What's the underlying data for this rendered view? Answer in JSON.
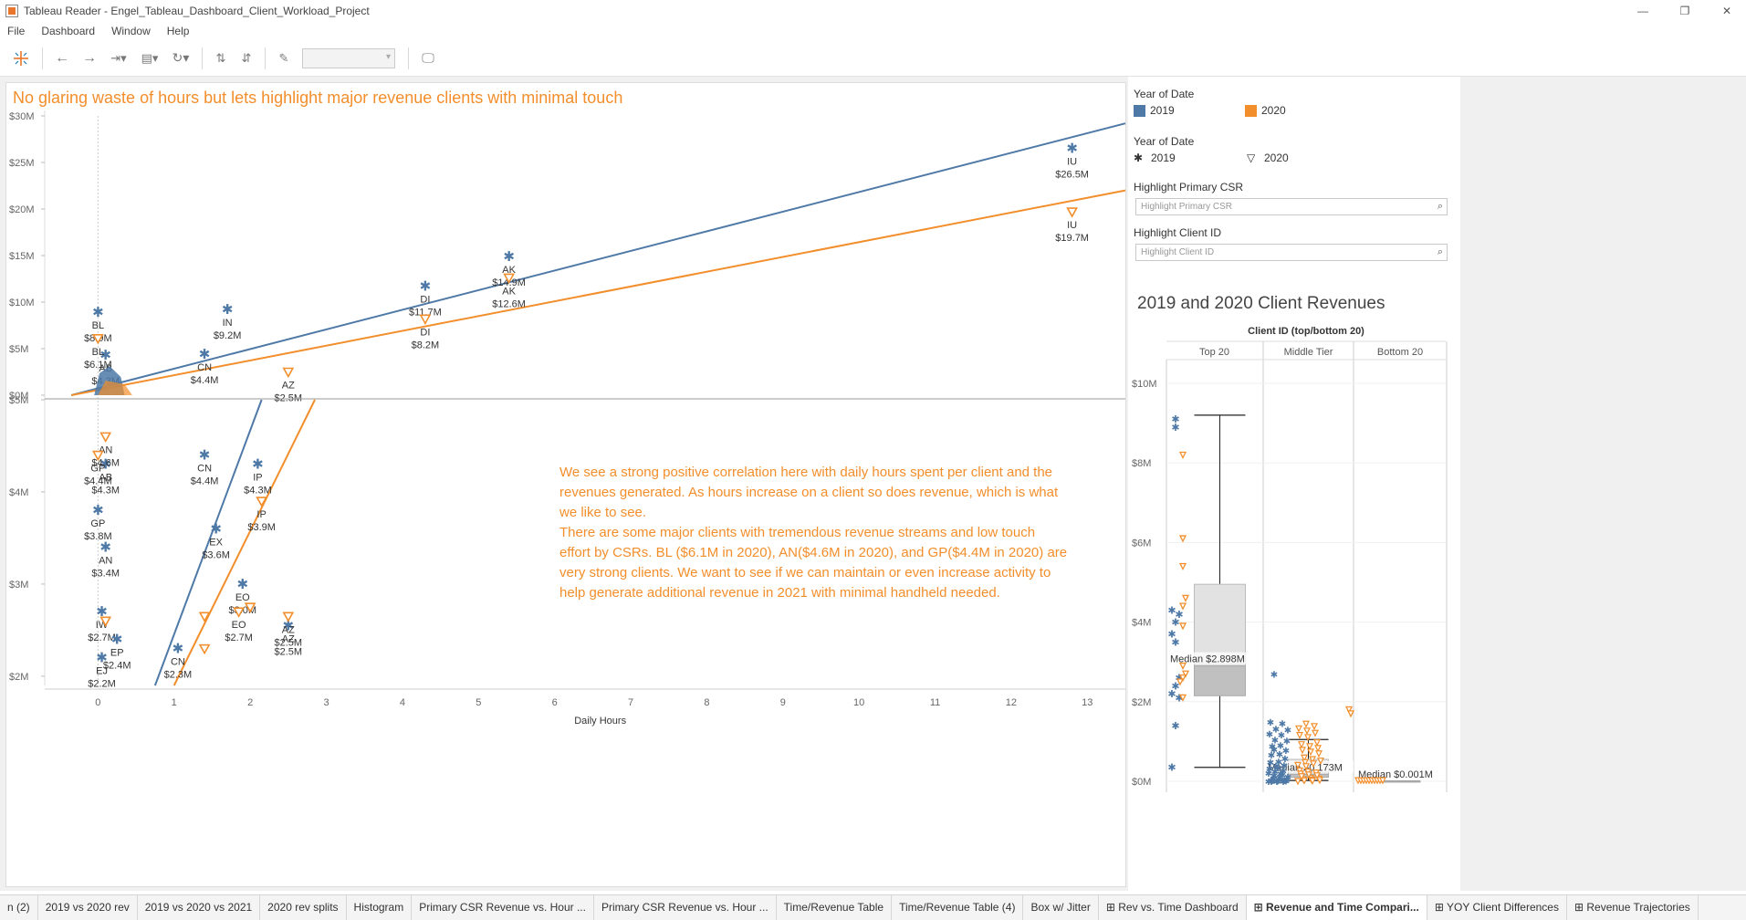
{
  "window": {
    "title": "Tableau Reader - Engel_Tableau_Dashboard_Client_Workload_Project",
    "minimize": "—",
    "maximize": "❐",
    "close": "✕"
  },
  "menu": [
    "File",
    "Dashboard",
    "Window",
    "Help"
  ],
  "toolbar": {
    "icons": [
      "tableau-logo-icon",
      "back-icon",
      "forward-icon",
      "revert-icon",
      "save-data-icon",
      "refresh-icon",
      "sort-ascending-icon",
      "sort-descending-icon",
      "pin-icon",
      "present-icon"
    ],
    "zoom_value": ""
  },
  "colors": {
    "blue": "#4e79a7",
    "orange": "#f28e2b",
    "annot": "#f28e2b"
  },
  "dashboard": {
    "headline": "No glaring waste of hours but lets highlight major revenue clients with minimal touch",
    "annotation": [
      "We see a strong positive correlation here with daily hours spent per client and the",
      "revenues generated. As hours increase on a client so does revenue, which is what",
      "we like to see.",
      "There are some major clients with tremendous revenue streams and low touch",
      "effort by CSRs. BL ($6.1M in 2020), AN($4.6M in 2020), and GP($4.4M in 2020) are",
      "very strong clients. We want to see if we can maintain or even increase activity to",
      "help generate additional revenue in 2021 with minimal handheld needed."
    ],
    "x_axis_label": "Daily Hours"
  },
  "legends": {
    "color_title": "Year of Date",
    "color_items": [
      {
        "label": "2019",
        "color": "#4e79a7"
      },
      {
        "label": "2020",
        "color": "#f28e2b"
      }
    ],
    "shape_title": "Year of Date",
    "shape_items": [
      {
        "label": "2019",
        "shape": "✱"
      },
      {
        "label": "2020",
        "shape": "▽"
      }
    ],
    "csr_title": "Highlight Primary CSR",
    "csr_placeholder": "Highlight Primary CSR",
    "client_title": "Highlight Client ID",
    "client_placeholder": "Highlight Client ID"
  },
  "chart_data": [
    {
      "type": "scatter",
      "title": "",
      "xlabel": "",
      "ylabel": "",
      "xlim": [
        -0.7,
        13.5
      ],
      "ylim": [
        0,
        30
      ],
      "y_ticks": [
        "$0M",
        "$5M",
        "$10M",
        "$15M",
        "$20M",
        "$25M",
        "$30M"
      ],
      "series": [
        {
          "name": "2019",
          "points": [
            {
              "label": "IU",
              "value": "$26.5M",
              "x": 12.8,
              "y": 26.5
            },
            {
              "label": "AK",
              "value": "$14.9M",
              "x": 5.4,
              "y": 14.9
            },
            {
              "label": "DI",
              "value": "$11.7M",
              "x": 4.3,
              "y": 11.7
            },
            {
              "label": "IN",
              "value": "$9.2M",
              "x": 1.7,
              "y": 9.2
            },
            {
              "label": "BL",
              "value": "$8.9M",
              "x": 0.0,
              "y": 8.9
            },
            {
              "label": "CN",
              "value": "$4.4M",
              "x": 1.4,
              "y": 4.4
            },
            {
              "label": "AB",
              "value": "$4.3M",
              "x": 0.1,
              "y": 4.3
            }
          ]
        },
        {
          "name": "2020",
          "points": [
            {
              "label": "IU",
              "value": "$19.7M",
              "x": 12.8,
              "y": 19.7
            },
            {
              "label": "AK",
              "value": "$12.6M",
              "x": 5.4,
              "y": 12.6
            },
            {
              "label": "DI",
              "value": "$8.2M",
              "x": 4.3,
              "y": 8.2
            },
            {
              "label": "BL",
              "value": "$6.1M",
              "x": 0.0,
              "y": 6.1
            },
            {
              "label": "AZ",
              "value": "$2.5M",
              "x": 2.5,
              "y": 2.5
            }
          ]
        }
      ],
      "trend_lines": [
        {
          "name": "2019",
          "from": [
            -0.35,
            0
          ],
          "to": [
            13.5,
            29.2
          ]
        },
        {
          "name": "2020",
          "from": [
            -0.35,
            0
          ],
          "to": [
            13.5,
            22.0
          ]
        }
      ]
    },
    {
      "type": "scatter",
      "title": "",
      "xlabel": "Daily Hours",
      "ylabel": "",
      "xlim": [
        -0.7,
        13.5
      ],
      "ylim": [
        1.9,
        5.0
      ],
      "x_ticks": [
        "0",
        "1",
        "2",
        "3",
        "4",
        "5",
        "6",
        "7",
        "8",
        "9",
        "10",
        "11",
        "12",
        "13"
      ],
      "y_ticks": [
        "$2M",
        "$3M",
        "$4M",
        "$5M"
      ],
      "series": [
        {
          "name": "2019",
          "points": [
            {
              "label": "CN",
              "value": "$4.4M",
              "x": 1.4,
              "y": 4.4
            },
            {
              "label": "IP",
              "value": "$4.3M",
              "x": 2.1,
              "y": 4.3
            },
            {
              "label": "AB",
              "value": "$4.3M",
              "x": 0.1,
              "y": 4.3
            },
            {
              "label": "GP",
              "value": "$3.8M",
              "x": 0.0,
              "y": 3.8
            },
            {
              "label": "EX",
              "value": "$3.6M",
              "x": 1.55,
              "y": 3.6
            },
            {
              "label": "AN",
              "value": "$3.4M",
              "x": 0.1,
              "y": 3.4
            },
            {
              "label": "EO",
              "value": "$3.0M",
              "x": 1.9,
              "y": 3.0
            },
            {
              "label": "IW",
              "value": "$2.7M",
              "x": 0.05,
              "y": 2.7
            },
            {
              "label": "AZ",
              "value": "$2.5M",
              "x": 2.5,
              "y": 2.55
            },
            {
              "label": "EP",
              "value": "$2.4M",
              "x": 0.25,
              "y": 2.4
            },
            {
              "label": "CN",
              "value": "$2.3M",
              "x": 1.05,
              "y": 2.3
            },
            {
              "label": "EJ",
              "value": "$2.2M",
              "x": 0.05,
              "y": 2.2
            }
          ]
        },
        {
          "name": "2020",
          "points": [
            {
              "label": "AN",
              "value": "$4.6M",
              "x": 0.1,
              "y": 4.6
            },
            {
              "label": "GP",
              "value": "$4.4M",
              "x": 0.0,
              "y": 4.4
            },
            {
              "label": "IP",
              "value": "$3.9M",
              "x": 2.15,
              "y": 3.9
            },
            {
              "label": "EO",
              "value": "$2.7M",
              "x": 1.85,
              "y": 2.7
            },
            {
              "label": "AZ",
              "value": "$2.5M",
              "x": 2.5,
              "y": 2.65
            },
            {
              "label": "",
              "value": "",
              "x": 1.4,
              "y": 2.65
            },
            {
              "label": "",
              "value": "",
              "x": 1.4,
              "y": 2.3
            },
            {
              "label": "",
              "value": "",
              "x": 2.0,
              "y": 2.75
            },
            {
              "label": "",
              "value": "",
              "x": 0.1,
              "y": 2.6
            }
          ]
        }
      ],
      "trend_lines": [
        {
          "name": "2019",
          "from": [
            0.75,
            1.9
          ],
          "to": [
            2.15,
            5.0
          ]
        },
        {
          "name": "2020",
          "from": [
            1.0,
            1.9
          ],
          "to": [
            2.85,
            5.0
          ]
        }
      ]
    },
    {
      "type": "box",
      "title": "2019 and 2020 Client Revenues",
      "header": "Client ID (top/bottom 20)",
      "categories": [
        "Top 20",
        "Middle Tier",
        "Bottom 20"
      ],
      "ylim": [
        0,
        10
      ],
      "y_ticks": [
        "$0M",
        "$2M",
        "$4M",
        "$6M",
        "$8M",
        "$10M"
      ],
      "medians": [
        {
          "category": "Top 20",
          "label": "Median $2.898M",
          "value": 2.898
        },
        {
          "category": "Middle Tier",
          "label": "Median $0.173M",
          "value": 0.173
        },
        {
          "category": "Bottom 20",
          "label": "Median $0.001M",
          "value": 0.001
        }
      ],
      "boxes": [
        {
          "category": "Top 20",
          "whisker_low": 0.35,
          "q1": 2.15,
          "median": 2.898,
          "q3": 4.95,
          "whisker_high": 9.2
        },
        {
          "category": "Middle Tier",
          "whisker_low": 0.02,
          "q1": 0.1,
          "median": 0.173,
          "q3": 0.55,
          "whisker_high": 1.05
        },
        {
          "category": "Bottom 20",
          "whisker_low": 0.0,
          "q1": 0.0,
          "median": 0.001,
          "q3": 0.001,
          "whisker_high": 0.002
        }
      ]
    }
  ],
  "tabs": [
    {
      "label": "n (2)",
      "active": false
    },
    {
      "label": "2019 vs 2020 rev",
      "active": false
    },
    {
      "label": "2019 vs 2020 vs 2021",
      "active": false
    },
    {
      "label": "2020 rev splits",
      "active": false
    },
    {
      "label": "Histogram",
      "active": false
    },
    {
      "label": "Primary CSR Revenue vs. Hour ...",
      "active": false
    },
    {
      "label": "Primary CSR Revenue vs. Hour ...",
      "active": false
    },
    {
      "label": "Time/Revenue Table",
      "active": false
    },
    {
      "label": "Time/Revenue Table (4)",
      "active": false
    },
    {
      "label": "Box w/ Jitter",
      "active": false
    },
    {
      "label": "Rev vs. Time Dashboard",
      "active": false,
      "icon": true
    },
    {
      "label": "Revenue and Time Compari...",
      "active": true,
      "icon": true
    },
    {
      "label": "YOY Client Differences",
      "active": false,
      "icon": true
    },
    {
      "label": "Revenue Trajectories",
      "active": false,
      "icon": true
    }
  ]
}
